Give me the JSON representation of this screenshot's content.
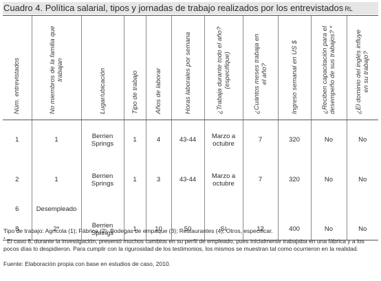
{
  "title": {
    "text": "Cuadro 4. Política salarial, tipos y jornadas de trabajo realizados por los entrevistados",
    "suffix": "RL"
  },
  "table": {
    "headers": [
      [
        "Núm. entrevistados"
      ],
      [
        "No miembros de la familia que",
        "trabajan"
      ],
      [
        "Lugar/ubicación"
      ],
      [
        "Tipo de trabajo"
      ],
      [
        "Años de laborar"
      ],
      [
        "Horas laborales por semana"
      ],
      [
        "¿Trabaja durante todo el año?",
        "(especifique)"
      ],
      [
        "¿Cuántos meses trabaja en",
        "el año?"
      ],
      [
        "Ingreso semanal en US $"
      ],
      [
        "¿Reciben capacitación para el",
        "desempeño de sus trabajos? *"
      ],
      [
        "¿El dominio del inglés influye",
        "en su trabajo?"
      ]
    ],
    "rows": [
      [
        "1",
        "1",
        "Berrien\nSprings",
        "1",
        "4",
        "43-44",
        "Marzo a\noctubre",
        "7",
        "320",
        "No",
        "No"
      ],
      [
        "2",
        "1",
        "Berrien\nSprings",
        "1",
        "3",
        "43-44",
        "Marzo a\noctubre",
        "7",
        "320",
        "No",
        "No"
      ],
      [
        "6",
        "Desempleado",
        "",
        "",
        "",
        "",
        "",
        "",
        "",
        "",
        ""
      ],
      [
        "8",
        "2*",
        "Berrien\nSprings",
        "1",
        "10",
        "50",
        "Sí",
        "12",
        "400",
        "No",
        "No"
      ]
    ]
  },
  "notes": {
    "work_types": "Tipo de trabajo: Agrícola (1); Fábrica (2); Bodegas de empaque (3); Restaurantes (4); Otros, especificar.",
    "star_mark": "*",
    "star_note": "El caso 8, durante la investigación, presentó muchos cambios en su perfil de empleado, pues inicialmente trabajaba en una fábrica y a los pocos días lo despidieron. Para cumplir con la rigurosidad de los testimonios, los mismos se muestran tal como ocurrieron en la realidad.",
    "source": "Fuente: Elaboración propia con base en estudios de caso, 2010."
  }
}
